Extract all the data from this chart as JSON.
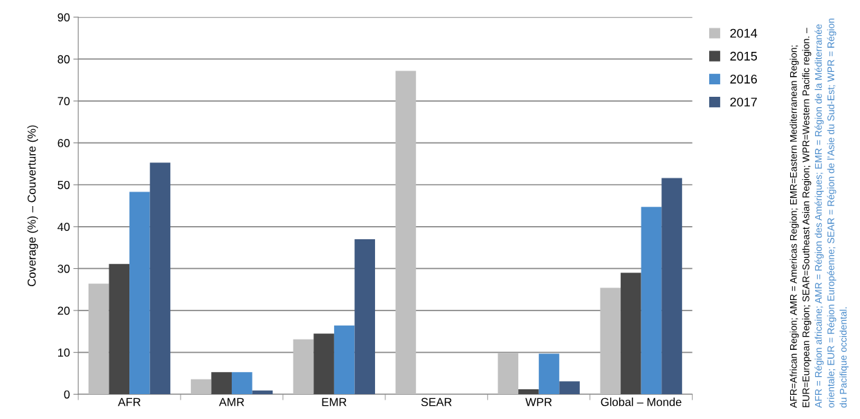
{
  "chart_data": {
    "type": "bar",
    "categories": [
      "AFR",
      "AMR",
      "EMR",
      "SEAR",
      "WPR",
      "Global – Monde"
    ],
    "series": [
      {
        "name": "2014",
        "color": "#bfbfbf",
        "values": [
          26.4,
          3.6,
          13.1,
          77.2,
          9.9,
          25.4
        ]
      },
      {
        "name": "2015",
        "color": "#474747",
        "values": [
          31.1,
          5.3,
          14.5,
          null,
          1.2,
          29.0
        ]
      },
      {
        "name": "2016",
        "color": "#4a8ccc",
        "values": [
          48.3,
          5.3,
          16.4,
          null,
          9.7,
          44.7
        ]
      },
      {
        "name": "2017",
        "color": "#3f5a82",
        "values": [
          55.3,
          0.9,
          37.0,
          null,
          3.1,
          51.6
        ]
      }
    ],
    "ylabel": "Coverage (%) – Couverture (%)",
    "ylim": [
      0,
      90
    ],
    "yticks": [
      0,
      10,
      20,
      30,
      40,
      50,
      60,
      70,
      80,
      90
    ],
    "grid": "y",
    "legend": "top right",
    "annotations": [
      "AFR=African Region; AMR = Americas Region; EMR=Eastern Mediterranean Region; EUR=European Region; SEAR=Southeast Asian Region; WPR=Western Pacific region. –",
      "AFR = Région africaine; AMR = Région des Amériques; EMR = Région de la Méditerranée orientale; EUR = Région Européenne; SEAR = Région de l’Asie du Sud-Est; WPR = Région du Pacifique occidental."
    ]
  }
}
